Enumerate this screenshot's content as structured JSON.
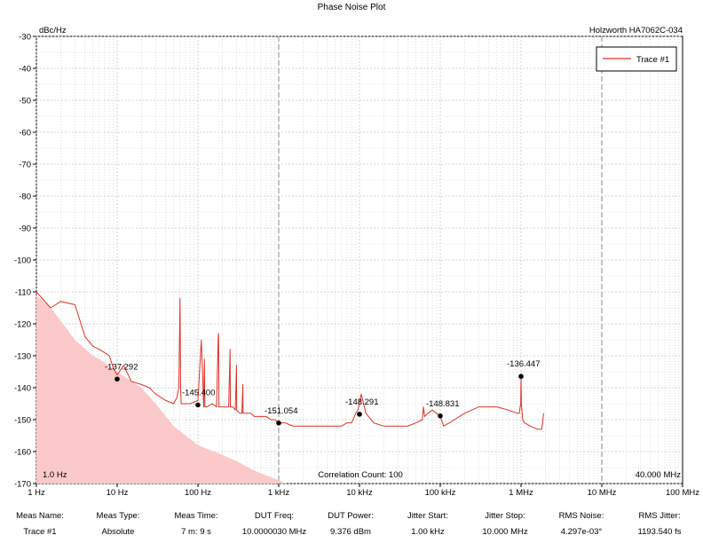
{
  "title": "Phase Noise Plot",
  "device": "Holzworth HA7062C-034",
  "ylabel": "dBc/Hz",
  "range_start_label": "1.0 Hz",
  "range_stop_label": "40.000 MHz",
  "correlation_label": "Correlation Count: 100",
  "chart_data": {
    "type": "line",
    "title": "Phase Noise Plot",
    "xlabel": "",
    "ylabel": "dBc/Hz",
    "x_scale": "log",
    "xlim": [
      1,
      100000000
    ],
    "ylim": [
      -170,
      -30
    ],
    "grid": true,
    "legend_position": "top-right",
    "x_tick_values": [
      1,
      10,
      100,
      1000,
      10000,
      100000,
      1000000,
      10000000,
      100000000
    ],
    "x_tick_labels": [
      "1 Hz",
      "10 Hz",
      "100 Hz",
      "1 kHz",
      "10 kHz",
      "100 kHz",
      "1 MHz",
      "10 MHz",
      "100 MHz"
    ],
    "y_ticks": [
      -30,
      -40,
      -50,
      -60,
      -70,
      -80,
      -90,
      -100,
      -110,
      -120,
      -130,
      -140,
      -150,
      -160,
      -170
    ],
    "series": [
      {
        "name": "Trace #1",
        "color": "#e0302a",
        "x": [
          1,
          1.5,
          2,
          3,
          4,
          5,
          6,
          7,
          8,
          9,
          10,
          12,
          15,
          20,
          25,
          30,
          40,
          50,
          55,
          58,
          60,
          61,
          62,
          65,
          70,
          80,
          100,
          110,
          118,
          120,
          122,
          130,
          150,
          170,
          178,
          180,
          182,
          200,
          240,
          250,
          252,
          270,
          290,
          300,
          302,
          330,
          350,
          360,
          362,
          400,
          450,
          500,
          600,
          700,
          800,
          900,
          1000,
          1200,
          1500,
          2000,
          3000,
          4000,
          5000,
          6000,
          7000,
          8000,
          9000,
          9500,
          10000,
          10500,
          11000,
          12000,
          15000,
          20000,
          30000,
          40000,
          50000,
          60000,
          62000,
          64000,
          70000,
          80000,
          90000,
          100000,
          110000,
          130000,
          150000,
          200000,
          300000,
          500000,
          700000,
          900000,
          950000,
          990000,
          1000000,
          1010000,
          1050000,
          1100000,
          1300000,
          1600000,
          1800000,
          1850000,
          1900000
        ],
        "y": [
          -110,
          -115,
          -113,
          -114,
          -124,
          -127,
          -128,
          -129,
          -130,
          -134,
          -136,
          -133,
          -138,
          -139,
          -140,
          -142,
          -144,
          -145,
          -143,
          -140,
          -112,
          -140,
          -145,
          -145,
          -145,
          -145,
          -144,
          -125,
          -146,
          -131,
          -146,
          -146,
          -145,
          -146,
          -124,
          -123,
          -146,
          -146,
          -146,
          -128,
          -146,
          -146,
          -147,
          -133,
          -147,
          -148,
          -148,
          -139,
          -148,
          -148,
          -148,
          -149,
          -149,
          -149,
          -150,
          -150,
          -151,
          -151,
          -152,
          -152,
          -152,
          -152,
          -152,
          -152,
          -151,
          -151,
          -148,
          -147,
          -145,
          -142,
          -144,
          -148,
          -151,
          -152,
          -152,
          -152,
          -151,
          -150,
          -146,
          -149,
          -148,
          -147,
          -148,
          -149,
          -152,
          -151,
          -150,
          -148,
          -146,
          -146,
          -147,
          -148,
          -148,
          -145,
          -136,
          -145,
          -150,
          -151,
          -152,
          -153,
          -153,
          -151,
          -148
        ]
      }
    ],
    "noise_floor": {
      "x": [
        1,
        1.5,
        2,
        3,
        5,
        7,
        10,
        20,
        30,
        50,
        100,
        200,
        300,
        500,
        1000,
        2000,
        3000,
        5000,
        10000
      ],
      "y": [
        -111,
        -115,
        -119,
        -125,
        -130,
        -132,
        -135,
        -140,
        -145,
        -152,
        -158,
        -161,
        -163,
        -166,
        -169,
        -172,
        -173,
        -175,
        -178
      ]
    },
    "markers": [
      {
        "x": 10,
        "y": -137.292,
        "label": "-137.292"
      },
      {
        "x": 100,
        "y": -145.4,
        "label": "-145.400"
      },
      {
        "x": 1000,
        "y": -151.054,
        "label": "-151.054"
      },
      {
        "x": 10000,
        "y": -148.291,
        "label": "-148.291"
      },
      {
        "x": 100000,
        "y": -148.831,
        "label": "-148.831"
      },
      {
        "x": 1000000,
        "y": -136.447,
        "label": "-136.447"
      }
    ]
  },
  "footer": [
    {
      "label": "Meas Name:",
      "value": "Trace #1"
    },
    {
      "label": "Meas Type:",
      "value": "Absolute"
    },
    {
      "label": "Meas Time:",
      "value": "7 m: 9 s"
    },
    {
      "label": "DUT Freq:",
      "value": "10.0000030 MHz"
    },
    {
      "label": "DUT Power:",
      "value": "9.376 dBm"
    },
    {
      "label": "Jitter Start:",
      "value": "1.00 kHz"
    },
    {
      "label": "Jitter Stop:",
      "value": "10.000 MHz"
    },
    {
      "label": "RMS Noise:",
      "value": "4.297e-03°"
    },
    {
      "label": "RMS Jitter:",
      "value": "1193.540 fs"
    }
  ]
}
